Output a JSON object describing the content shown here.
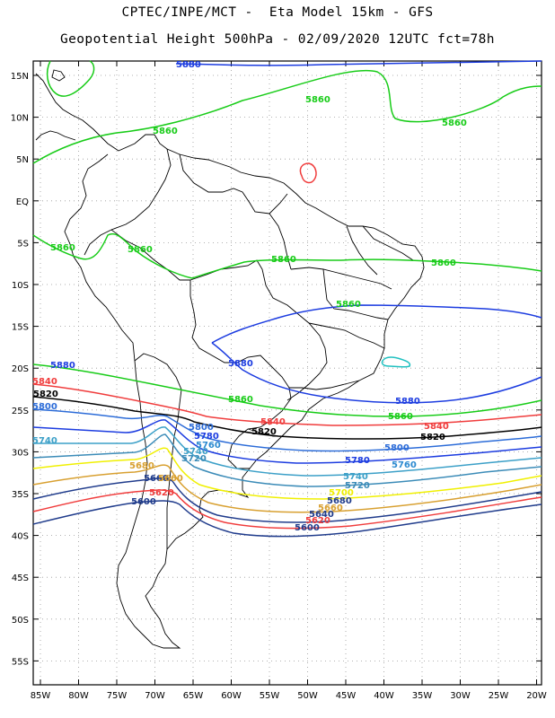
{
  "title": {
    "line1": "CPTEC/INPE/MCT -  Eta Model 15km - GFS",
    "line2": "Geopotential Height 500hPa - 02/09/2020 12UTC fct=78h"
  },
  "colors": {
    "c5880": "#1c3ce0",
    "c5860": "#18cc18",
    "c5840": "#f03c3c",
    "c5820": "#000000",
    "c5800": "#2c6cd8",
    "c5780": "#1c3ce0",
    "c5760": "#2c8ad0",
    "c5740": "#3ca0c8",
    "c5720": "#3c8cb8",
    "c5700": "#f0f000",
    "c5680": "#d8a030",
    "c5660": "#203c8c",
    "small_red": "#f03c3c",
    "small_cyan": "#20c0c0"
  },
  "lat_labels": [
    "15N",
    "10N",
    "5N",
    "EQ",
    "5S",
    "10S",
    "15S",
    "20S",
    "25S",
    "30S",
    "35S",
    "40S",
    "45S",
    "50S",
    "55S"
  ],
  "lon_labels": [
    "85W",
    "80W",
    "75W",
    "70W",
    "65W",
    "60W",
    "55W",
    "50W",
    "45W",
    "40W",
    "35W",
    "30W",
    "25W",
    "20W"
  ],
  "contour_labels": [
    {
      "text": "5880",
      "color": "c5880",
      "id": "l5880a"
    },
    {
      "text": "5860",
      "color": "c5860",
      "id": "l5860a"
    },
    {
      "text": "5860",
      "color": "c5860",
      "id": "l5860b"
    },
    {
      "text": "5860",
      "color": "c5860",
      "id": "l5860c"
    },
    {
      "text": "5860",
      "color": "c5860",
      "id": "l5860d"
    },
    {
      "text": "5860",
      "color": "c5860",
      "id": "l5860e"
    },
    {
      "text": "5860",
      "color": "c5860",
      "id": "l5860f"
    },
    {
      "text": "5860",
      "color": "c5860",
      "id": "l5860g"
    },
    {
      "text": "5880",
      "color": "c5880",
      "id": "l5880b"
    },
    {
      "text": "5880",
      "color": "c5880",
      "id": "l5880c"
    },
    {
      "text": "5880",
      "color": "c5880",
      "id": "l5880d"
    },
    {
      "text": "5860",
      "color": "c5860",
      "id": "l5860h"
    },
    {
      "text": "5860",
      "color": "c5860",
      "id": "l5860i"
    },
    {
      "text": "5860",
      "color": "c5860",
      "id": "l5860j"
    },
    {
      "text": "5840",
      "color": "c5840",
      "id": "l5840a"
    },
    {
      "text": "5820",
      "color": "c5820",
      "id": "l5820a"
    },
    {
      "text": "5800",
      "color": "c5800",
      "id": "l5800a"
    },
    {
      "text": "5740",
      "color": "c5740",
      "id": "l5740a"
    },
    {
      "text": "5840",
      "color": "c5840",
      "id": "l5840b"
    },
    {
      "text": "5820",
      "color": "c5820",
      "id": "l5820b"
    },
    {
      "text": "5840",
      "color": "c5840",
      "id": "l5840c"
    },
    {
      "text": "5820",
      "color": "c5820",
      "id": "l5820c"
    },
    {
      "text": "5800",
      "color": "c5800",
      "id": "l5800b"
    },
    {
      "text": "5780",
      "color": "c5780",
      "id": "l5780a"
    },
    {
      "text": "5760",
      "color": "c5760",
      "id": "l5760a"
    },
    {
      "text": "5740",
      "color": "c5740",
      "id": "l5740b"
    },
    {
      "text": "5720",
      "color": "c5720",
      "id": "l5720a"
    },
    {
      "text": "5800",
      "color": "c5800",
      "id": "l5800c"
    },
    {
      "text": "5780",
      "color": "c5780",
      "id": "l5780b"
    },
    {
      "text": "5760",
      "color": "c5760",
      "id": "l5760b"
    },
    {
      "text": "5740",
      "color": "c5740",
      "id": "l5740c"
    },
    {
      "text": "5720",
      "color": "c5720",
      "id": "l5720b"
    },
    {
      "text": "5680",
      "color": "c5680",
      "id": "l5680a"
    },
    {
      "text": "5660",
      "color": "c5660",
      "id": "l5660a"
    },
    {
      "text": "5660",
      "color": "c5680",
      "id": "l5660b"
    },
    {
      "text": "5620",
      "color": "c5840",
      "id": "l5620a"
    },
    {
      "text": "5600",
      "color": "c5660",
      "id": "l5600a"
    },
    {
      "text": "5700",
      "color": "c5700",
      "id": "l5700a"
    },
    {
      "text": "5680",
      "color": "c5660",
      "id": "l5680b"
    },
    {
      "text": "5660",
      "color": "c5680",
      "id": "l5660c"
    },
    {
      "text": "5640",
      "color": "c5660",
      "id": "l5640a"
    },
    {
      "text": "5620",
      "color": "c5840",
      "id": "l5620b"
    },
    {
      "text": "5600",
      "color": "c5660",
      "id": "l5600b"
    }
  ]
}
